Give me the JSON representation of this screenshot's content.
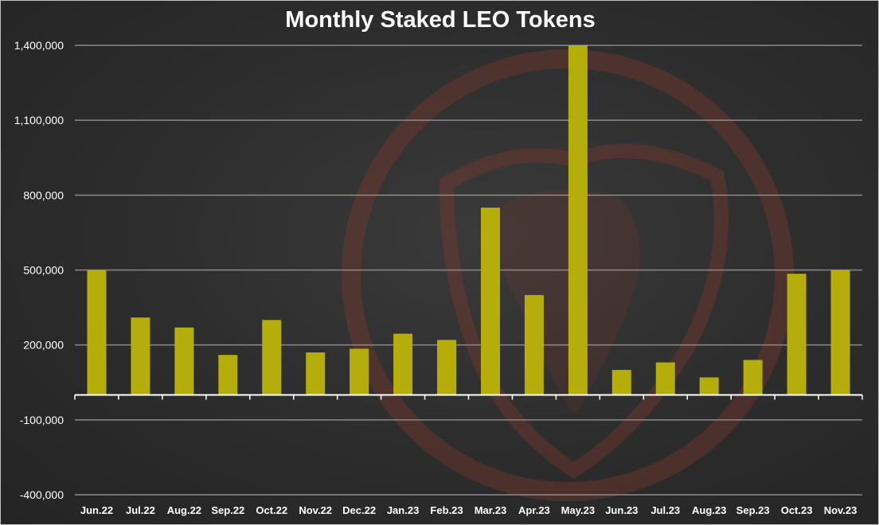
{
  "chart_data": {
    "type": "bar",
    "title": "Monthly Staked LEO Tokens",
    "xlabel": "",
    "ylabel": "",
    "ylim": [
      -400000,
      1400000
    ],
    "y_ticks": [
      1400000,
      1100000,
      800000,
      500000,
      200000,
      -100000,
      -400000
    ],
    "y_tick_labels": [
      "1,400,000",
      "1,100,000",
      "800,000",
      "500,000",
      "200,000",
      "-100,000",
      "-400,000"
    ],
    "categories": [
      "Jun.22",
      "Jul.22",
      "Aug.22",
      "Sep.22",
      "Oct.22",
      "Nov.22",
      "Dec.22",
      "Jan.23",
      "Feb.23",
      "Mar.23",
      "Apr.23",
      "May.23",
      "Jun.23",
      "Jul.23",
      "Aug.23",
      "Sep.23",
      "Oct.23",
      "Nov.23"
    ],
    "values": [
      500000,
      310000,
      270000,
      160000,
      300000,
      170000,
      185000,
      245000,
      220000,
      750000,
      400000,
      1400000,
      100000,
      130000,
      70000,
      140000,
      485000,
      500000
    ],
    "grid": true,
    "legend": "none",
    "colors": {
      "bar": "#b5ad0c",
      "grid": "#8a8a8a",
      "zero_line": "#ffffff",
      "background": "#2e2e2e",
      "watermark": "#8a3a2a"
    }
  }
}
